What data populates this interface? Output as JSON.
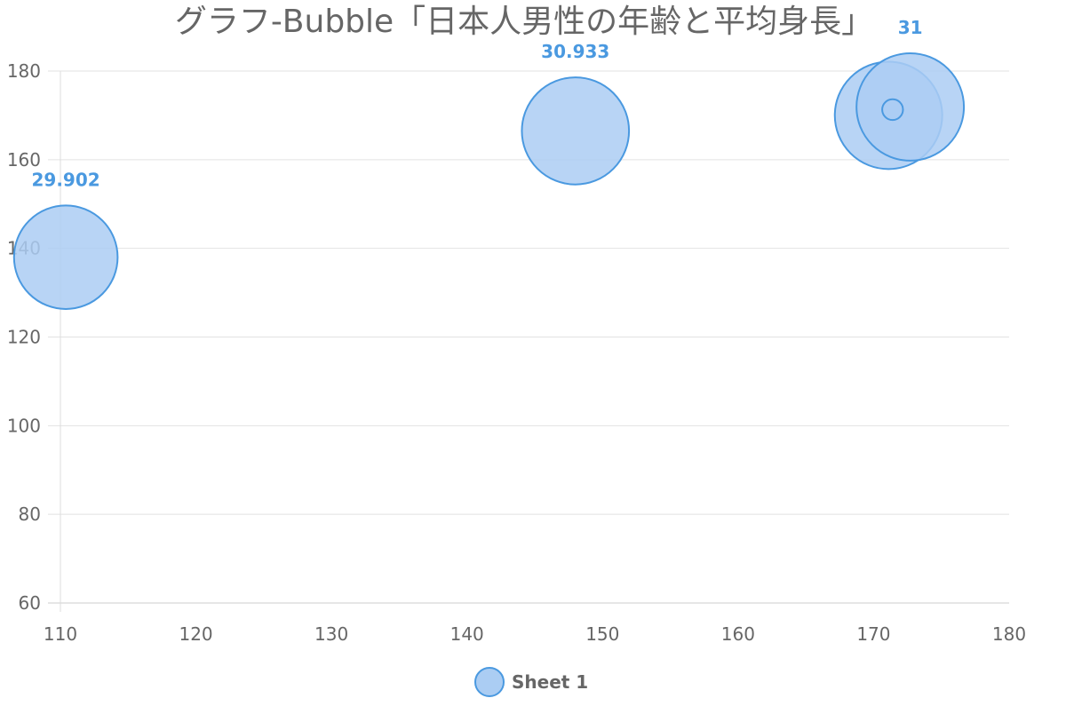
{
  "chart_data": {
    "type": "scatter",
    "title": "グラフ-Bubble「日本人男性の年齢と平均身長」",
    "xlim": [
      110,
      180
    ],
    "ylim": [
      60,
      180
    ],
    "x_ticks": [
      "110",
      "120",
      "130",
      "140",
      "150",
      "160",
      "170",
      "180"
    ],
    "y_ticks": [
      "60",
      "80",
      "100",
      "120",
      "140",
      "160",
      "180"
    ],
    "grid": true,
    "legend_position": "bottom",
    "series": [
      {
        "name": "Sheet 1",
        "fill_color": "#abcdf3",
        "stroke_color": "#4a99e0",
        "label_color": "#4a99e0",
        "points": [
          {
            "x": 110.4,
            "y": 138,
            "r": 29.902,
            "label": "29.902"
          },
          {
            "x": 148,
            "y": 166.5,
            "r": 30.933,
            "label": "30.933"
          },
          {
            "x": 171.1,
            "y": 170,
            "r": 31,
            "label": ""
          },
          {
            "x": 172.7,
            "y": 171.9,
            "r": 31,
            "label": "31"
          },
          {
            "x": 171.4,
            "y": 171.3,
            "r": 6,
            "label": ""
          }
        ]
      }
    ]
  }
}
